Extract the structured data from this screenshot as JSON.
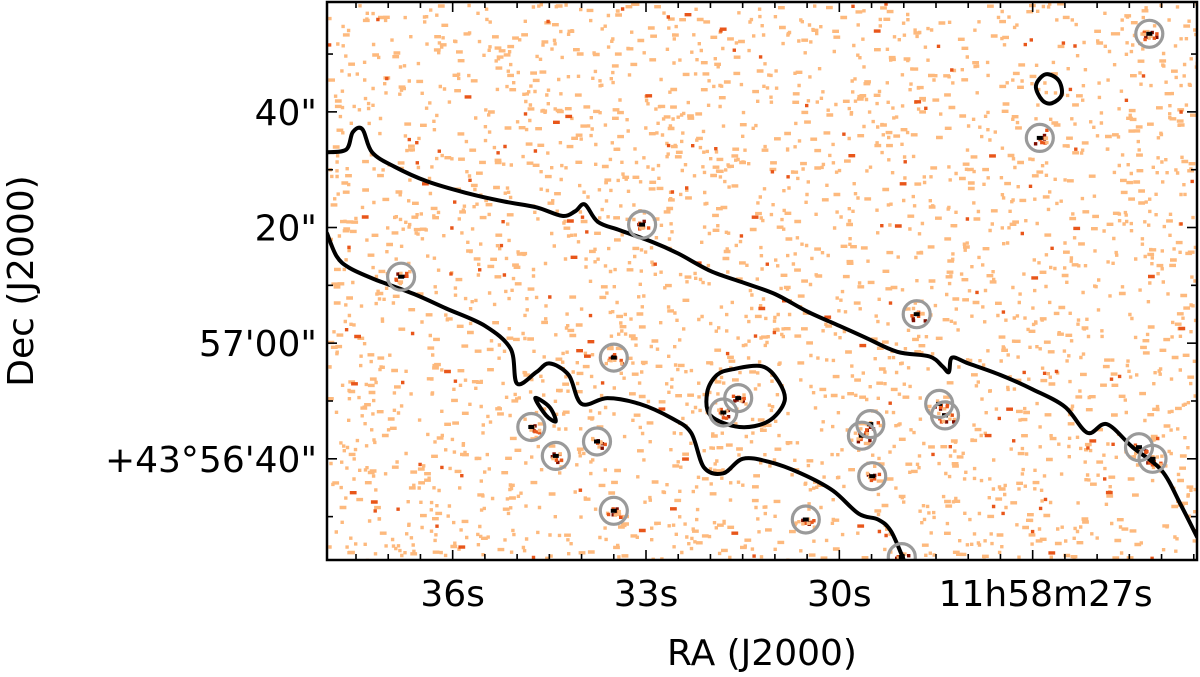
{
  "chart_data": {
    "type": "scatter",
    "title": "",
    "xlabel": "RA (J2000)",
    "ylabel": "Dec (J2000)",
    "x_ticks": [
      {
        "label": "36s",
        "ra_sec": 36.0
      },
      {
        "label": "33s",
        "ra_sec": 33.0
      },
      {
        "label": "30s",
        "ra_sec": 30.0
      },
      {
        "label": "11h58m27s",
        "ra_sec": 27.0
      }
    ],
    "y_ticks": [
      {
        "label": "40\"",
        "dec_arcsec": 40
      },
      {
        "label": "20\"",
        "dec_arcsec": 20
      },
      {
        "label": "57'00\"",
        "dec_arcsec": 0
      },
      {
        "label": "+43°56'40\"",
        "dec_arcsec": -20
      }
    ],
    "x_range_ra_sec": [
      37.95,
      24.45
    ],
    "y_range_dec_arcsec": [
      -37.5,
      59
    ],
    "x_axis_direction": "RA increases to the left",
    "colormap": [
      "#ffffff",
      "#fdb97d",
      "#e8561a",
      "#7f0d00",
      "#000000"
    ],
    "contour_color": "#000000",
    "source_marker_color": "#9a9a9a",
    "sources": [
      {
        "ra_sec": 36.8,
        "dec_arcsec": 11.5
      },
      {
        "ra_sec": 33.06,
        "dec_arcsec": 20.5
      },
      {
        "ra_sec": 33.5,
        "dec_arcsec": -2.5
      },
      {
        "ra_sec": 28.8,
        "dec_arcsec": 5.0
      },
      {
        "ra_sec": 26.89,
        "dec_arcsec": 35.5
      },
      {
        "ra_sec": 25.19,
        "dec_arcsec": 53.5
      },
      {
        "ra_sec": 31.57,
        "dec_arcsec": -9.5
      },
      {
        "ra_sec": 31.8,
        "dec_arcsec": -12.0
      },
      {
        "ra_sec": 34.78,
        "dec_arcsec": -14.5
      },
      {
        "ra_sec": 34.4,
        "dec_arcsec": -19.5
      },
      {
        "ra_sec": 33.76,
        "dec_arcsec": -17.0
      },
      {
        "ra_sec": 29.52,
        "dec_arcsec": -14.0
      },
      {
        "ra_sec": 29.65,
        "dec_arcsec": -16.0
      },
      {
        "ra_sec": 29.49,
        "dec_arcsec": -23.0
      },
      {
        "ra_sec": 28.45,
        "dec_arcsec": -10.5
      },
      {
        "ra_sec": 28.36,
        "dec_arcsec": -12.5
      },
      {
        "ra_sec": 25.35,
        "dec_arcsec": -18.0
      },
      {
        "ra_sec": 25.14,
        "dec_arcsec": -20.0
      },
      {
        "ra_sec": 33.5,
        "dec_arcsec": -29.0
      },
      {
        "ra_sec": 30.52,
        "dec_arcsec": -30.5
      },
      {
        "ra_sec": 29.03,
        "dec_arcsec": -37.0
      }
    ],
    "contours": [
      {
        "name": "",
        "closed": false,
        "points": [
          [
            37.95,
            33.0
          ],
          [
            37.65,
            33.5
          ],
          [
            37.55,
            36.5
          ],
          [
            37.4,
            37.0
          ],
          [
            37.25,
            33.0
          ],
          [
            36.9,
            30.5
          ],
          [
            36.4,
            28.0
          ],
          [
            35.8,
            26.0
          ],
          [
            35.2,
            24.5
          ],
          [
            34.7,
            23.5
          ],
          [
            34.3,
            22.0
          ],
          [
            34.1,
            22.8
          ],
          [
            33.95,
            24.0
          ],
          [
            33.75,
            21.0
          ],
          [
            33.4,
            19.5
          ],
          [
            32.9,
            17.5
          ],
          [
            32.5,
            15.5
          ],
          [
            32.0,
            12.5
          ],
          [
            31.5,
            10.5
          ],
          [
            31.0,
            8.5
          ],
          [
            30.5,
            5.5
          ],
          [
            30.0,
            3.0
          ],
          [
            29.6,
            1.0
          ],
          [
            29.1,
            -1.5
          ],
          [
            28.6,
            -2.3
          ],
          [
            28.4,
            -4.0
          ],
          [
            28.3,
            -5.0
          ],
          [
            28.25,
            -2.5
          ],
          [
            28.0,
            -3.5
          ],
          [
            27.5,
            -5.5
          ],
          [
            27.0,
            -8.0
          ],
          [
            26.5,
            -11.0
          ],
          [
            26.15,
            -15.5
          ],
          [
            25.85,
            -14.0
          ],
          [
            25.45,
            -18.0
          ],
          [
            25.0,
            -22.0
          ],
          [
            24.7,
            -28.0
          ],
          [
            24.45,
            -33.5
          ]
        ]
      },
      {
        "name": "",
        "closed": false,
        "points": [
          [
            37.95,
            19.0
          ],
          [
            37.8,
            15.0
          ],
          [
            37.6,
            13.0
          ],
          [
            37.2,
            11.0
          ],
          [
            36.6,
            8.5
          ],
          [
            36.1,
            6.0
          ],
          [
            35.5,
            3.0
          ],
          [
            35.1,
            -1.0
          ],
          [
            35.0,
            -7.0
          ],
          [
            34.7,
            -5.0
          ],
          [
            34.5,
            -3.5
          ],
          [
            34.2,
            -5.5
          ],
          [
            34.0,
            -10.5
          ],
          [
            33.6,
            -9.5
          ],
          [
            33.1,
            -10.5
          ],
          [
            32.6,
            -13.0
          ],
          [
            32.3,
            -15.5
          ],
          [
            32.1,
            -21.5
          ],
          [
            31.8,
            -22.5
          ],
          [
            31.5,
            -20.0
          ],
          [
            31.1,
            -20.5
          ],
          [
            30.6,
            -22.5
          ],
          [
            30.1,
            -25.5
          ],
          [
            29.7,
            -29.5
          ],
          [
            29.4,
            -30.5
          ],
          [
            29.2,
            -32.5
          ],
          [
            29.0,
            -37.5
          ]
        ]
      },
      {
        "name": "",
        "closed": true,
        "points": [
          [
            31.65,
            -4.5
          ],
          [
            31.2,
            -4.0
          ],
          [
            30.95,
            -6.5
          ],
          [
            30.85,
            -10.0
          ],
          [
            31.1,
            -13.5
          ],
          [
            31.55,
            -14.5
          ],
          [
            32.0,
            -12.5
          ],
          [
            32.05,
            -8.5
          ],
          [
            31.9,
            -5.5
          ],
          [
            31.65,
            -4.5
          ]
        ]
      },
      {
        "name": "",
        "closed": true,
        "points": [
          [
            26.8,
            46.5
          ],
          [
            26.6,
            45.5
          ],
          [
            26.55,
            43.0
          ],
          [
            26.7,
            41.5
          ],
          [
            26.85,
            42.0
          ],
          [
            26.95,
            44.5
          ],
          [
            26.8,
            46.5
          ]
        ]
      },
      {
        "name": "",
        "closed": true,
        "points": [
          [
            34.72,
            -9.5
          ],
          [
            34.5,
            -11.0
          ],
          [
            34.4,
            -13.5
          ],
          [
            34.55,
            -12.5
          ],
          [
            34.72,
            -9.5
          ]
        ]
      }
    ],
    "grid": false
  }
}
